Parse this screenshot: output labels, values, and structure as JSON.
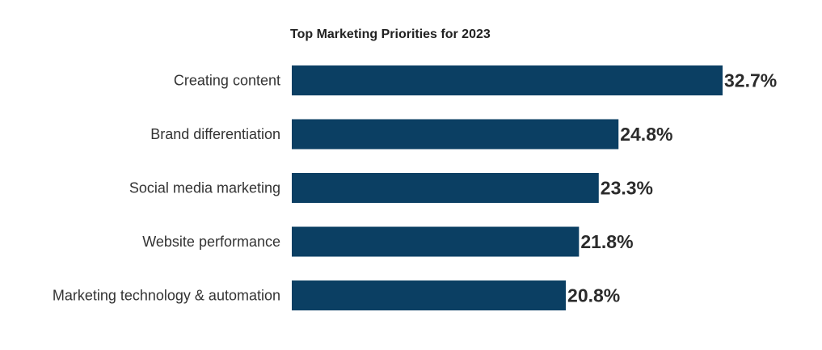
{
  "chart_data": {
    "type": "bar",
    "orientation": "horizontal",
    "title": "Top Marketing Priorities for 2023",
    "categories": [
      "Creating content",
      "Brand differentiation",
      "Social media marketing",
      "Website performance",
      "Marketing technology & automation"
    ],
    "values": [
      32.7,
      24.8,
      23.3,
      21.8,
      20.8
    ],
    "value_labels": [
      "32.7%",
      "24.8%",
      "23.3%",
      "21.8%",
      "20.8%"
    ],
    "bar_color": "#0b3f63",
    "grid": false,
    "legend": "none"
  }
}
